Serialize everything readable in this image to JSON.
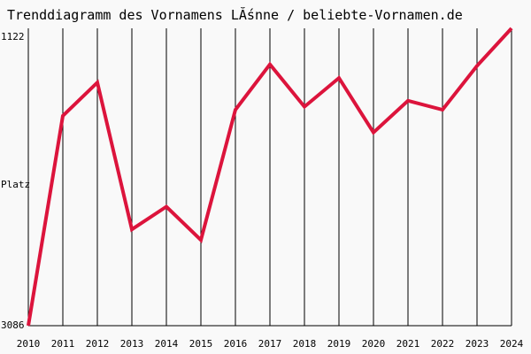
{
  "chart_data": {
    "type": "line",
    "title": "Trenddiagramm des Vornamens LĂśnne / beliebte-Vornamen.de",
    "ylabel": "Platz",
    "y_inverted": true,
    "ylim": [
      3086,
      1122
    ],
    "y_ticks": [
      "1122",
      "3086"
    ],
    "grid": "vertical",
    "categories": [
      "2010",
      "2011",
      "2012",
      "2013",
      "2014",
      "2015",
      "2016",
      "2017",
      "2018",
      "2019",
      "2020",
      "2021",
      "2022",
      "2023",
      "2024"
    ],
    "series": [
      {
        "color": "#dc143c",
        "values": [
          3086,
          1700,
          1480,
          2450,
          2300,
          2520,
          1660,
          1360,
          1640,
          1450,
          1810,
          1600,
          1660,
          1370,
          1122
        ]
      }
    ]
  }
}
